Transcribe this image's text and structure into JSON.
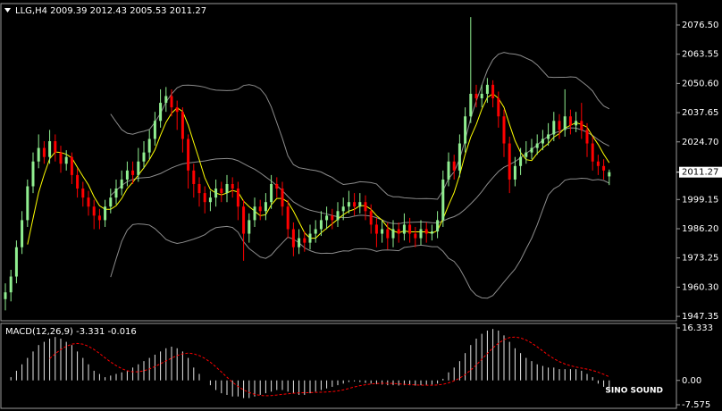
{
  "chart_data": [
    {
      "type": "candlestick",
      "title": "LLG,H4  2009.39 2012.43 2005.53 2011.27",
      "open": [
        1955,
        1958,
        1965,
        1978,
        1990,
        2005,
        2016,
        2022,
        2018,
        2025,
        2020,
        2015,
        2018,
        2010,
        2004,
        2000,
        1996,
        1992,
        1990,
        1996,
        2000,
        2004,
        2008,
        2012,
        2010,
        2016,
        2020,
        2026,
        2034,
        2042,
        2045,
        2040,
        2038,
        2026,
        2012,
        2006,
        2002,
        1998,
        2000,
        2004,
        2002,
        2006,
        2004,
        1996,
        1984,
        1990,
        1996,
        1994,
        1998,
        2006,
        2004,
        1996,
        1986,
        1978,
        1982,
        1980,
        1984,
        1986,
        1990,
        1992,
        1990,
        1994,
        1996,
        1998,
        1996,
        1998,
        1994,
        1988,
        1984,
        1986,
        1982,
        1986,
        1984,
        1988,
        1984,
        1982,
        1986,
        1984,
        1985,
        1990,
        2008,
        2016,
        2012,
        2024,
        2036,
        2046,
        2044,
        2046,
        2050,
        2044,
        2036,
        2024,
        2008,
        2014,
        2018,
        2020,
        2022,
        2024,
        2026,
        2028,
        2034,
        2030,
        2036,
        2032,
        2034,
        2030,
        2024,
        2016,
        2014,
        2009.39
      ],
      "high": [
        1962,
        1968,
        1981,
        1994,
        2008,
        2020,
        2028,
        2025,
        2030,
        2028,
        2023,
        2021,
        2020,
        2013,
        2007,
        2003,
        1999,
        1995,
        1999,
        2004,
        2008,
        2012,
        2016,
        2016,
        2022,
        2025,
        2030,
        2038,
        2048,
        2049,
        2048,
        2043,
        2040,
        2028,
        2015,
        2009,
        2005,
        2003,
        2008,
        2007,
        2010,
        2009,
        2007,
        1999,
        1993,
        2000,
        1999,
        2002,
        2010,
        2009,
        2007,
        1999,
        1989,
        1986,
        1985,
        1988,
        1990,
        1994,
        1996,
        1995,
        1998,
        2000,
        2003,
        2002,
        2002,
        2001,
        1997,
        1991,
        1990,
        1989,
        1990,
        1989,
        1993,
        1991,
        1987,
        1990,
        1989,
        1988,
        1994,
        2012,
        2020,
        2019,
        2028,
        2040,
        2080,
        2050,
        2050,
        2053,
        2052,
        2047,
        2039,
        2027,
        2018,
        2022,
        2025,
        2026,
        2028,
        2030,
        2033,
        2038,
        2037,
        2048,
        2039,
        2038,
        2042,
        2033,
        2027,
        2019,
        2017,
        2012.43
      ],
      "low": [
        1950,
        1954,
        1962,
        1975,
        1987,
        2002,
        2013,
        2015,
        2015,
        2016,
        2011,
        2012,
        2006,
        2000,
        1996,
        1992,
        1986,
        1986,
        1987,
        1993,
        1997,
        2001,
        2005,
        2006,
        2007,
        2013,
        2017,
        2023,
        2031,
        2038,
        2036,
        2030,
        2020,
        2004,
        2000,
        1996,
        1993,
        1994,
        1996,
        1998,
        1998,
        2000,
        1990,
        1972,
        1980,
        1987,
        1990,
        1990,
        1995,
        2000,
        1992,
        1982,
        1974,
        1975,
        1976,
        1977,
        1980,
        1983,
        1986,
        1986,
        1987,
        1990,
        1993,
        1992,
        1993,
        1990,
        1984,
        1978,
        1980,
        1977,
        1978,
        1980,
        1981,
        1980,
        1978,
        1979,
        1980,
        1981,
        1982,
        1987,
        2005,
        2008,
        2009,
        2020,
        2033,
        2040,
        2040,
        2042,
        2040,
        2031,
        2018,
        2002,
        2005,
        2010,
        2015,
        2017,
        2019,
        2021,
        2023,
        2025,
        2026,
        2027,
        2028,
        2029,
        2026,
        2018,
        2012,
        2010,
        2008,
        2005.53
      ],
      "close": [
        1958,
        1965,
        1978,
        1990,
        2005,
        2016,
        2022,
        2018,
        2025,
        2020,
        2015,
        2018,
        2010,
        2004,
        2000,
        1996,
        1992,
        1990,
        1996,
        2000,
        2004,
        2008,
        2012,
        2010,
        2016,
        2020,
        2026,
        2034,
        2042,
        2045,
        2040,
        2038,
        2026,
        2012,
        2006,
        2002,
        1998,
        2000,
        2004,
        2002,
        2006,
        2004,
        1996,
        1984,
        1990,
        1996,
        1994,
        1998,
        2006,
        2004,
        1996,
        1986,
        1978,
        1982,
        1980,
        1984,
        1986,
        1990,
        1992,
        1990,
        1994,
        1996,
        1998,
        1996,
        1998,
        1994,
        1988,
        1984,
        1986,
        1982,
        1986,
        1984,
        1988,
        1984,
        1982,
        1986,
        1984,
        1985,
        1990,
        2008,
        2016,
        2012,
        2024,
        2036,
        2046,
        2044,
        2046,
        2050,
        2044,
        2036,
        2024,
        2008,
        2014,
        2018,
        2020,
        2022,
        2024,
        2026,
        2028,
        2034,
        2030,
        2036,
        2032,
        2034,
        2030,
        2024,
        2016,
        2014,
        2012,
        2011.27
      ],
      "up_color": "#90ee90",
      "down_color": "#ff0000",
      "band_color": "#8c8c8c",
      "ma_color": "#ffff00",
      "current_price": 2011.27,
      "ylim": [
        1945.8,
        2085.6
      ],
      "yticks": [
        {
          "value": 2076.5,
          "label": "2076.50"
        },
        2063.55,
        {
          "value": 2050.6,
          "label": "2050.60"
        },
        2037.65,
        {
          "value": 2024.7,
          "label": "2024.70"
        },
        1999.15,
        {
          "value": 1986.2,
          "label": "1986.20"
        },
        1973.25,
        {
          "value": 1960.3,
          "label": "1960.30"
        },
        1947.35
      ]
    },
    {
      "type": "macd",
      "title": "MACD(12,26,9) -3.331 -0.016",
      "values": [
        0,
        1,
        3,
        5,
        7,
        9,
        11,
        12,
        13,
        13.5,
        13,
        12,
        11,
        9,
        7,
        5,
        3,
        2,
        1,
        1.5,
        2,
        2.5,
        3,
        4,
        5,
        6,
        7,
        8,
        9,
        10,
        10.5,
        10,
        9,
        7,
        4,
        2,
        0,
        -1.5,
        -3,
        -4,
        -4.5,
        -5,
        -5,
        -5.5,
        -5.5,
        -5,
        -4.5,
        -4,
        -3.5,
        -3,
        -3,
        -3.5,
        -4,
        -4.5,
        -4.5,
        -4,
        -3.5,
        -3,
        -2.5,
        -2,
        -1.5,
        -1,
        -0.5,
        -0.3,
        -0.5,
        -0.8,
        -1,
        -1.2,
        -1.3,
        -1.5,
        -1.5,
        -1.6,
        -1.5,
        -1.5,
        -1.6,
        -1.5,
        -1.4,
        -1.3,
        -1,
        0.5,
        2.5,
        4,
        6,
        8.5,
        11,
        13,
        14.5,
        15.5,
        16,
        15.5,
        14,
        12,
        10,
        8.5,
        7,
        6,
        5,
        4.5,
        4,
        4,
        3.5,
        3.5,
        3.5,
        3.5,
        3,
        2,
        1,
        -1,
        -2,
        -3.331
      ],
      "color": "#e6e6e6",
      "signal_color": "#ff0000",
      "ylim": [
        -7.575,
        16.333
      ],
      "yticks": [
        16.333,
        {
          "value": 0,
          "label": "0.00"
        },
        -7.575
      ]
    }
  ],
  "watermark": "SINO SOUND"
}
